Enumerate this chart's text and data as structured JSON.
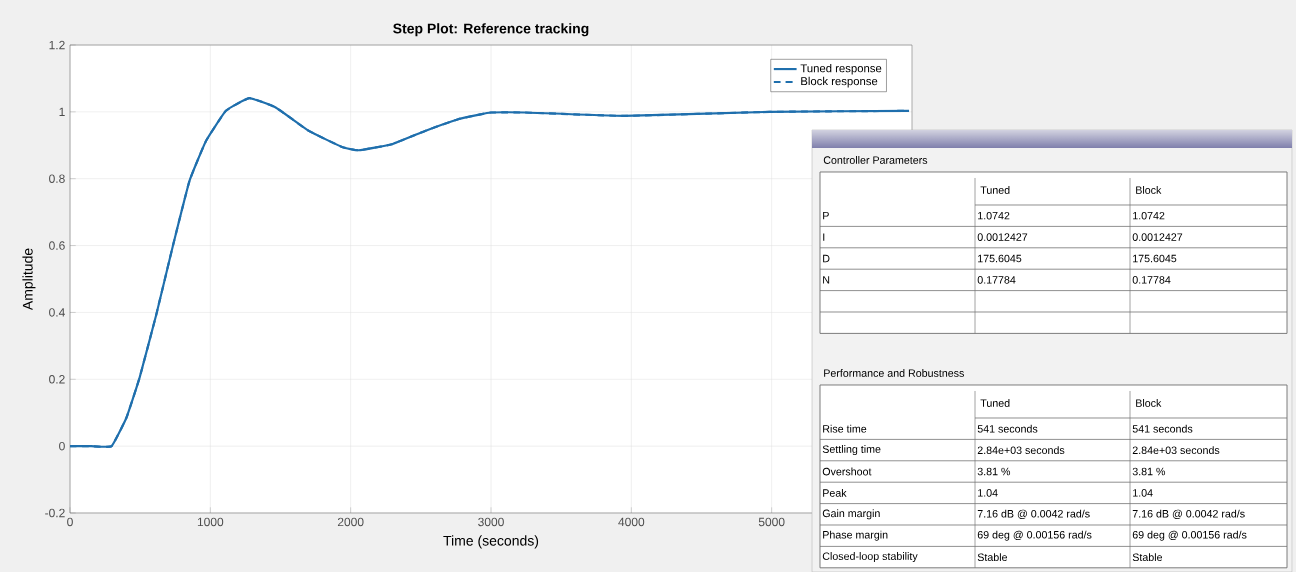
{
  "chart_data": [
    {
      "type": "line",
      "title": "Step Plot: Reference tracking",
      "xlabel": "Time (seconds)",
      "ylabel": "Amplitude",
      "xlim": [
        0,
        6000
      ],
      "ylim": [
        -0.2,
        1.2
      ],
      "xticks": [
        0,
        1000,
        2000,
        3000,
        4000,
        5000
      ],
      "yticks": [
        -0.2,
        0,
        0.2,
        0.4,
        0.6,
        0.8,
        1,
        1.2
      ],
      "grid": true,
      "legend": "top right",
      "x": [
        0,
        150,
        296,
        402,
        496,
        615,
        733,
        851,
        969,
        1111,
        1277,
        1466,
        1702,
        1939,
        2057,
        2293,
        2530,
        2766,
        2908,
        3000,
        3241,
        3950,
        4986,
        5979
      ],
      "series": [
        {
          "name": "Tuned response",
          "color": "#1f6fad",
          "line_style": "solid",
          "values": [
            0,
            0,
            0,
            0.085,
            0.205,
            0.394,
            0.599,
            0.793,
            0.913,
            1.003,
            1.041,
            1.013,
            0.943,
            0.895,
            0.885,
            0.903,
            0.943,
            0.978,
            0.991,
            0.998,
            0.998,
            0.988,
            1.0,
            1.003
          ]
        },
        {
          "name": "Block response",
          "color": "#1f6fad",
          "line_style": "dashed",
          "values": [
            0,
            0,
            0,
            0.085,
            0.205,
            0.394,
            0.599,
            0.793,
            0.913,
            1.003,
            1.041,
            1.013,
            0.943,
            0.895,
            0.885,
            0.903,
            0.943,
            0.978,
            0.991,
            0.998,
            0.998,
            0.988,
            1.0,
            1.003
          ]
        }
      ]
    },
    {
      "type": "other",
      "title": "Controller Parameters",
      "categories": [
        "Tuned",
        "Block"
      ],
      "y_categories": [
        "P",
        "I",
        "D",
        "N",
        null,
        null
      ],
      "cell_labels": [
        [
          "1.0742",
          "1.0742"
        ],
        [
          "0.0012427",
          "0.0012427"
        ],
        [
          "175.6045",
          "175.6045"
        ],
        [
          "0.17784",
          "0.17784"
        ],
        [
          null,
          null
        ],
        [
          null,
          null
        ]
      ]
    },
    {
      "type": "other",
      "title": "Performance and Robustness",
      "categories": [
        "Tuned",
        "Block"
      ],
      "y_categories": [
        "Rise time",
        "Settling time",
        "Overshoot",
        "Peak",
        "Gain margin",
        "Phase margin",
        "Closed-loop stability"
      ],
      "cell_labels": [
        [
          "541 seconds",
          "541 seconds"
        ],
        [
          "2.84e+03 seconds",
          "2.84e+03 seconds"
        ],
        [
          "3.81 %",
          "3.81 %"
        ],
        [
          "1.04",
          "1.04"
        ],
        [
          "7.16 dB @ 0.0042 rad/s",
          "7.16 dB @ 0.0042 rad/s"
        ],
        [
          "69 deg @ 0.00156 rad/s",
          "69 deg @ 0.00156 rad/s"
        ],
        [
          "Stable",
          "Stable"
        ]
      ]
    }
  ]
}
